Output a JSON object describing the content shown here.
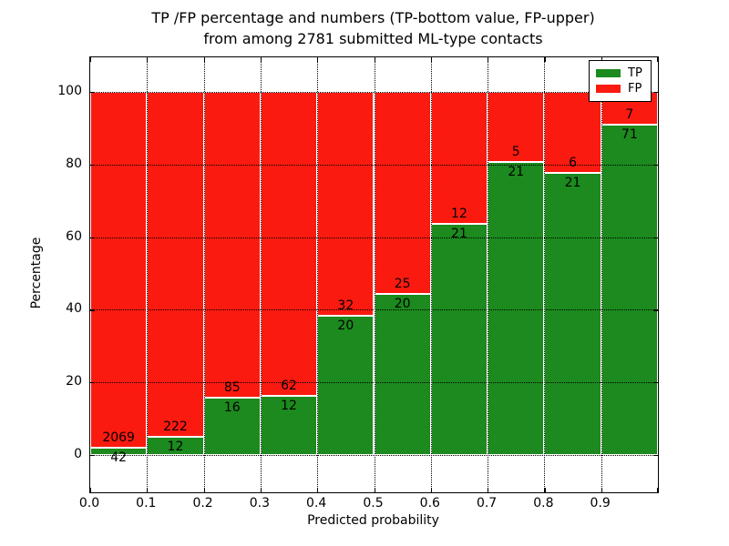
{
  "figure": {
    "title_line1": "TP /FP percentage and numbers (TP-bottom value, FP-upper)",
    "title_line2": "from among 2781 submitted ML-type contacts",
    "total_contacts_shown_in_title": 2781
  },
  "chart_data": {
    "type": "bar",
    "subtype": "stacked-percentage",
    "title": "TP /FP percentage and numbers (TP-bottom value, FP-upper) from among 2781 submitted ML-type contacts",
    "xlabel": "Predicted probability",
    "ylabel": "Percentage",
    "bin_width": 0.1,
    "categories": [
      "0.0-0.1",
      "0.1-0.2",
      "0.2-0.3",
      "0.3-0.4",
      "0.4-0.5",
      "0.5-0.6",
      "0.6-0.7",
      "0.7-0.8",
      "0.8-0.9",
      "0.9-1.0"
    ],
    "series": [
      {
        "name": "TP",
        "color": "#1c8a1e",
        "values": [
          42,
          12,
          16,
          12,
          20,
          20,
          21,
          21,
          21,
          71
        ]
      },
      {
        "name": "FP",
        "color": "#fb1a10",
        "values": [
          2069,
          222,
          85,
          62,
          32,
          25,
          12,
          5,
          6,
          7
        ]
      }
    ],
    "bars_normalized_to_percent": true,
    "x_tick_labels": [
      "0.0",
      "0.1",
      "0.2",
      "0.3",
      "0.4",
      "0.5",
      "0.6",
      "0.7",
      "0.8",
      "0.9"
    ],
    "y_tick_values": [
      0,
      20,
      40,
      60,
      80,
      100
    ],
    "xlim": [
      0.0,
      1.0
    ],
    "ylim": [
      -10.3,
      109.5
    ],
    "grid": true,
    "grid_style": "dotted",
    "legend": {
      "position": "upper right",
      "entries": [
        "TP",
        "FP"
      ]
    }
  }
}
